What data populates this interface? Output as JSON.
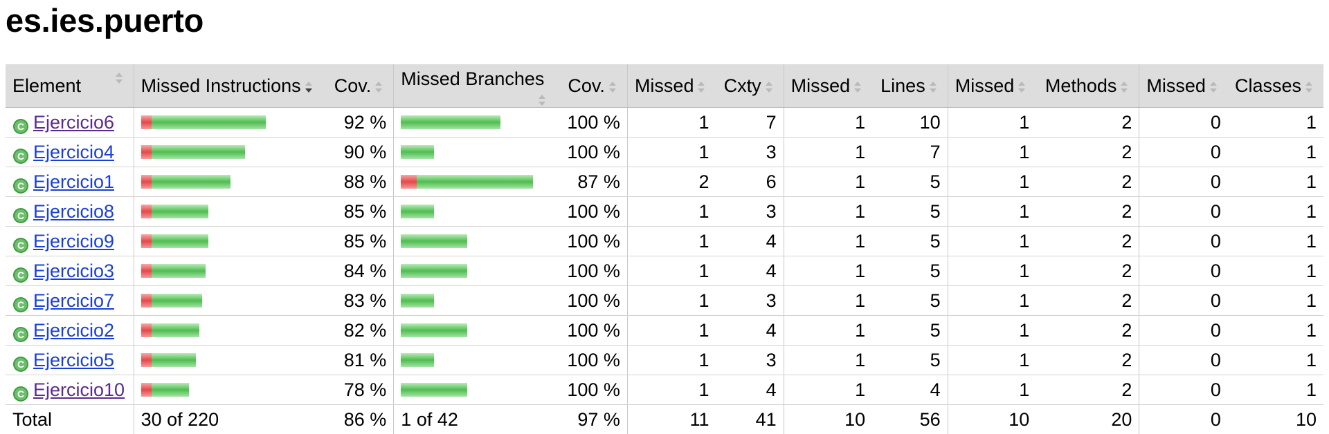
{
  "page_title": "es.ies.puerto",
  "header": {
    "element": "Element",
    "missed_instructions": "Missed Instructions",
    "cov1": "Cov.",
    "missed_branches": "Missed Branches",
    "cov2": "Cov.",
    "missed_cxty": "Missed",
    "cxty": "Cxty",
    "missed_lines": "Missed",
    "lines": "Lines",
    "missed_methods": "Missed",
    "methods": "Methods",
    "missed_classes": "Missed",
    "classes": "Classes"
  },
  "rows": [
    {
      "name": "Ejercicio6",
      "visited": true,
      "instr_cov": "92 %",
      "instr_missed": 1,
      "instr_total": 12,
      "br_cov": "100 %",
      "br_missed": 0,
      "br_total": 6,
      "missed_cxty": "1",
      "cxty": "7",
      "missed_lines": "1",
      "lines": "10",
      "missed_methods": "1",
      "methods": "2",
      "missed_classes": "0",
      "classes": "1"
    },
    {
      "name": "Ejercicio4",
      "visited": false,
      "instr_cov": "90 %",
      "instr_missed": 1,
      "instr_total": 10,
      "br_cov": "100 %",
      "br_missed": 0,
      "br_total": 2,
      "missed_cxty": "1",
      "cxty": "3",
      "missed_lines": "1",
      "lines": "7",
      "missed_methods": "1",
      "methods": "2",
      "missed_classes": "0",
      "classes": "1"
    },
    {
      "name": "Ejercicio1",
      "visited": false,
      "instr_cov": "88 %",
      "instr_missed": 1,
      "instr_total": 8.6,
      "br_cov": "87 %",
      "br_missed": 1,
      "br_total": 8,
      "missed_cxty": "2",
      "cxty": "6",
      "missed_lines": "1",
      "lines": "5",
      "missed_methods": "1",
      "methods": "2",
      "missed_classes": "0",
      "classes": "1"
    },
    {
      "name": "Ejercicio8",
      "visited": false,
      "instr_cov": "85 %",
      "instr_missed": 1,
      "instr_total": 6.5,
      "br_cov": "100 %",
      "br_missed": 0,
      "br_total": 2,
      "missed_cxty": "1",
      "cxty": "3",
      "missed_lines": "1",
      "lines": "5",
      "missed_methods": "1",
      "methods": "2",
      "missed_classes": "0",
      "classes": "1"
    },
    {
      "name": "Ejercicio9",
      "visited": false,
      "instr_cov": "85 %",
      "instr_missed": 1,
      "instr_total": 6.5,
      "br_cov": "100 %",
      "br_missed": 0,
      "br_total": 4,
      "missed_cxty": "1",
      "cxty": "4",
      "missed_lines": "1",
      "lines": "5",
      "missed_methods": "1",
      "methods": "2",
      "missed_classes": "0",
      "classes": "1"
    },
    {
      "name": "Ejercicio3",
      "visited": false,
      "instr_cov": "84 %",
      "instr_missed": 1,
      "instr_total": 6.2,
      "br_cov": "100 %",
      "br_missed": 0,
      "br_total": 4,
      "missed_cxty": "1",
      "cxty": "4",
      "missed_lines": "1",
      "lines": "5",
      "missed_methods": "1",
      "methods": "2",
      "missed_classes": "0",
      "classes": "1"
    },
    {
      "name": "Ejercicio7",
      "visited": false,
      "instr_cov": "83 %",
      "instr_missed": 1,
      "instr_total": 5.9,
      "br_cov": "100 %",
      "br_missed": 0,
      "br_total": 2,
      "missed_cxty": "1",
      "cxty": "3",
      "missed_lines": "1",
      "lines": "5",
      "missed_methods": "1",
      "methods": "2",
      "missed_classes": "0",
      "classes": "1"
    },
    {
      "name": "Ejercicio2",
      "visited": false,
      "instr_cov": "82 %",
      "instr_missed": 1,
      "instr_total": 5.6,
      "br_cov": "100 %",
      "br_missed": 0,
      "br_total": 4,
      "missed_cxty": "1",
      "cxty": "4",
      "missed_lines": "1",
      "lines": "5",
      "missed_methods": "1",
      "methods": "2",
      "missed_classes": "0",
      "classes": "1"
    },
    {
      "name": "Ejercicio5",
      "visited": false,
      "instr_cov": "81 %",
      "instr_missed": 1,
      "instr_total": 5.3,
      "br_cov": "100 %",
      "br_missed": 0,
      "br_total": 2,
      "missed_cxty": "1",
      "cxty": "3",
      "missed_lines": "1",
      "lines": "5",
      "missed_methods": "1",
      "methods": "2",
      "missed_classes": "0",
      "classes": "1"
    },
    {
      "name": "Ejercicio10",
      "visited": true,
      "instr_cov": "78 %",
      "instr_missed": 1,
      "instr_total": 4.6,
      "br_cov": "100 %",
      "br_missed": 0,
      "br_total": 4,
      "missed_cxty": "1",
      "cxty": "4",
      "missed_lines": "1",
      "lines": "4",
      "missed_methods": "1",
      "methods": "2",
      "missed_classes": "0",
      "classes": "1"
    }
  ],
  "total": {
    "label": "Total",
    "instr": "30 of 220",
    "instr_cov": "86 %",
    "br": "1 of 42",
    "br_cov": "97 %",
    "missed_cxty": "11",
    "cxty": "41",
    "missed_lines": "10",
    "lines": "56",
    "missed_methods": "10",
    "methods": "20",
    "missed_classes": "0",
    "classes": "10"
  },
  "colors": {
    "missed": "#e54848",
    "covered": "#4fbd4f",
    "header_bg": "#dddddd",
    "link": "#1a3fd6",
    "visited_link": "#5a2a8e"
  }
}
